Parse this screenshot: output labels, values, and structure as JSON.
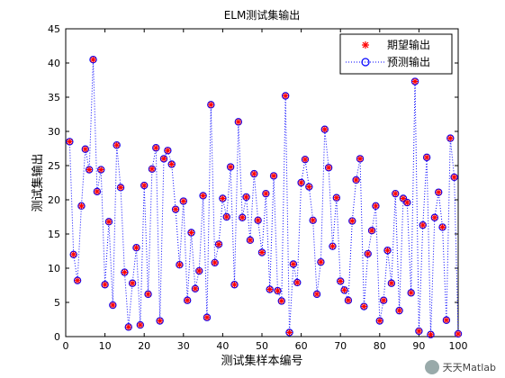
{
  "chart_data": {
    "type": "scatter",
    "title": "ELM测试集输出",
    "xlabel": "测试集样本编号",
    "ylabel": "测试集输出",
    "xlim": [
      0,
      100
    ],
    "ylim": [
      0,
      45
    ],
    "xticks": [
      0,
      10,
      20,
      30,
      40,
      50,
      60,
      70,
      80,
      90,
      100
    ],
    "yticks": [
      0,
      5,
      10,
      15,
      20,
      25,
      30,
      35,
      40,
      45
    ],
    "grid": false,
    "legend_position": "top-right",
    "x": [
      1,
      2,
      3,
      4,
      5,
      6,
      7,
      8,
      9,
      10,
      11,
      12,
      13,
      14,
      15,
      16,
      17,
      18,
      19,
      20,
      21,
      22,
      23,
      24,
      25,
      26,
      27,
      28,
      29,
      30,
      31,
      32,
      33,
      34,
      35,
      36,
      37,
      38,
      39,
      40,
      41,
      42,
      43,
      44,
      45,
      46,
      47,
      48,
      49,
      50,
      51,
      52,
      53,
      54,
      55,
      56,
      57,
      58,
      59,
      60,
      61,
      62,
      63,
      64,
      65,
      66,
      67,
      68,
      69,
      70,
      71,
      72,
      73,
      74,
      75,
      76,
      77,
      78,
      79,
      80,
      81,
      82,
      83,
      84,
      85,
      86,
      87,
      88,
      89,
      90,
      91,
      92,
      93,
      94,
      95,
      96,
      97,
      98,
      99,
      100
    ],
    "series": [
      {
        "name": "期望输出",
        "marker": "asterisk",
        "color": "#ff0000",
        "values": [
          28.5,
          12.0,
          8.2,
          19.1,
          27.4,
          24.4,
          40.5,
          21.2,
          24.4,
          7.6,
          16.8,
          4.6,
          28.0,
          21.8,
          9.4,
          1.4,
          7.8,
          13.0,
          1.7,
          22.1,
          6.2,
          24.5,
          27.6,
          2.3,
          26.0,
          27.2,
          25.2,
          18.6,
          10.5,
          19.8,
          5.3,
          15.2,
          7.0,
          9.6,
          20.6,
          2.8,
          33.9,
          10.8,
          13.5,
          20.2,
          17.5,
          24.8,
          7.6,
          31.4,
          17.4,
          20.4,
          14.1,
          23.8,
          17.0,
          12.3,
          20.9,
          6.9,
          23.5,
          6.7,
          5.2,
          35.2,
          0.6,
          10.6,
          7.9,
          22.5,
          25.9,
          21.9,
          17.0,
          6.2,
          10.9,
          30.3,
          24.7,
          13.2,
          20.3,
          8.1,
          6.8,
          5.3,
          16.9,
          22.9,
          26.0,
          4.4,
          12.1,
          15.5,
          19.1,
          2.3,
          5.3,
          12.6,
          7.8,
          20.9,
          3.8,
          20.2,
          19.6,
          6.4,
          37.3,
          0.8,
          16.3,
          26.2,
          0.3,
          17.4,
          21.1,
          16.0,
          2.4,
          29.0,
          23.3,
          0.4
        ]
      },
      {
        "name": "预测输出",
        "marker": "circle",
        "line": "dotted",
        "color": "#0000ff",
        "values": [
          28.5,
          12.0,
          8.2,
          19.1,
          27.4,
          24.4,
          40.5,
          21.2,
          24.4,
          7.6,
          16.8,
          4.6,
          28.0,
          21.8,
          9.4,
          1.4,
          7.8,
          13.0,
          1.7,
          22.1,
          6.2,
          24.5,
          27.6,
          2.3,
          26.0,
          27.2,
          25.2,
          18.6,
          10.5,
          19.8,
          5.3,
          15.2,
          7.0,
          9.6,
          20.6,
          2.8,
          33.9,
          10.8,
          13.5,
          20.2,
          17.5,
          24.8,
          7.6,
          31.4,
          17.4,
          20.4,
          14.1,
          23.8,
          17.0,
          12.3,
          20.9,
          6.9,
          23.5,
          6.7,
          5.2,
          35.2,
          0.6,
          10.6,
          7.9,
          22.5,
          25.9,
          21.9,
          17.0,
          6.2,
          10.9,
          30.3,
          24.7,
          13.2,
          20.3,
          8.1,
          6.8,
          5.3,
          16.9,
          22.9,
          26.0,
          4.4,
          12.1,
          15.5,
          19.1,
          2.3,
          5.3,
          12.6,
          7.8,
          20.9,
          3.8,
          20.2,
          19.6,
          6.4,
          37.3,
          0.8,
          16.3,
          26.2,
          0.3,
          17.4,
          21.1,
          16.0,
          2.4,
          29.0,
          23.3,
          0.4
        ]
      }
    ]
  },
  "watermark": {
    "text": "天天Matlab"
  }
}
